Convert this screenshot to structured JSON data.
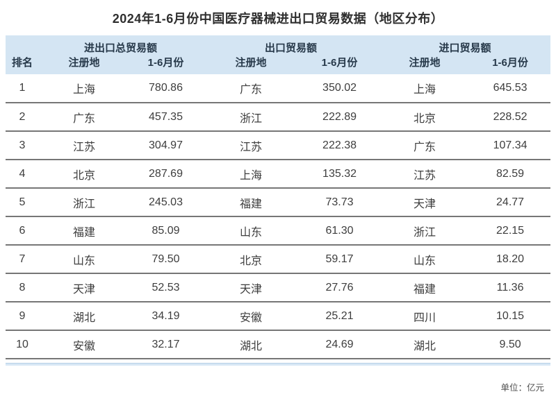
{
  "page": {
    "title": "2024年1-6月份中国医疗器械进出口贸易数据（地区分布）",
    "unit_note": "单位：亿元"
  },
  "colors": {
    "header_bg": "#d4e5f3",
    "row_separator": "#767676",
    "accent_line": "#d7e7f5",
    "text": "#3d3d3d"
  },
  "table": {
    "rank_header": "排名",
    "region_header": "注册地",
    "period_header": "1-6月份",
    "groups": {
      "total": "进出口总贸易额",
      "export": "出口贸易额",
      "import": "进口贸易额"
    },
    "rows": [
      {
        "rank": "1",
        "total_region": "上海",
        "total_value": "780.86",
        "export_region": "广东",
        "export_value": "350.02",
        "import_region": "上海",
        "import_value": "645.53"
      },
      {
        "rank": "2",
        "total_region": "广东",
        "total_value": "457.35",
        "export_region": "浙江",
        "export_value": "222.89",
        "import_region": "北京",
        "import_value": "228.52"
      },
      {
        "rank": "3",
        "total_region": "江苏",
        "total_value": "304.97",
        "export_region": "江苏",
        "export_value": "222.38",
        "import_region": "广东",
        "import_value": "107.34"
      },
      {
        "rank": "4",
        "total_region": "北京",
        "total_value": "287.69",
        "export_region": "上海",
        "export_value": "135.32",
        "import_region": "江苏",
        "import_value": "82.59"
      },
      {
        "rank": "5",
        "total_region": "浙江",
        "total_value": "245.03",
        "export_region": "福建",
        "export_value": "73.73",
        "import_region": "天津",
        "import_value": "24.77"
      },
      {
        "rank": "6",
        "total_region": "福建",
        "total_value": "85.09",
        "export_region": "山东",
        "export_value": "61.30",
        "import_region": "浙江",
        "import_value": "22.15"
      },
      {
        "rank": "7",
        "total_region": "山东",
        "total_value": "79.50",
        "export_region": "北京",
        "export_value": "59.17",
        "import_region": "山东",
        "import_value": "18.20"
      },
      {
        "rank": "8",
        "total_region": "天津",
        "total_value": "52.53",
        "export_region": "天津",
        "export_value": "27.76",
        "import_region": "福建",
        "import_value": "11.36"
      },
      {
        "rank": "9",
        "total_region": "湖北",
        "total_value": "34.19",
        "export_region": "安徽",
        "export_value": "25.21",
        "import_region": "四川",
        "import_value": "10.15"
      },
      {
        "rank": "10",
        "total_region": "安徽",
        "total_value": "32.17",
        "export_region": "湖北",
        "export_value": "24.69",
        "import_region": "湖北",
        "import_value": "9.50"
      }
    ]
  },
  "chart_data": {
    "type": "table",
    "title": "2024年1-6月份中国医疗器械进出口贸易数据（地区分布）",
    "unit": "亿元",
    "column_groups": [
      "进出口总贸易额",
      "出口贸易额",
      "进口贸易额"
    ],
    "columns": [
      "排名",
      "注册地",
      "1-6月份",
      "注册地",
      "1-6月份",
      "注册地",
      "1-6月份"
    ],
    "rows": [
      [
        1,
        "上海",
        780.86,
        "广东",
        350.02,
        "上海",
        645.53
      ],
      [
        2,
        "广东",
        457.35,
        "浙江",
        222.89,
        "北京",
        228.52
      ],
      [
        3,
        "江苏",
        304.97,
        "江苏",
        222.38,
        "广东",
        107.34
      ],
      [
        4,
        "北京",
        287.69,
        "上海",
        135.32,
        "江苏",
        82.59
      ],
      [
        5,
        "浙江",
        245.03,
        "福建",
        73.73,
        "天津",
        24.77
      ],
      [
        6,
        "福建",
        85.09,
        "山东",
        61.3,
        "浙江",
        22.15
      ],
      [
        7,
        "山东",
        79.5,
        "北京",
        59.17,
        "山东",
        18.2
      ],
      [
        8,
        "天津",
        52.53,
        "天津",
        27.76,
        "福建",
        11.36
      ],
      [
        9,
        "湖北",
        34.19,
        "安徽",
        25.21,
        "四川",
        10.15
      ],
      [
        10,
        "安徽",
        32.17,
        "湖北",
        24.69,
        "湖北",
        9.5
      ]
    ]
  }
}
